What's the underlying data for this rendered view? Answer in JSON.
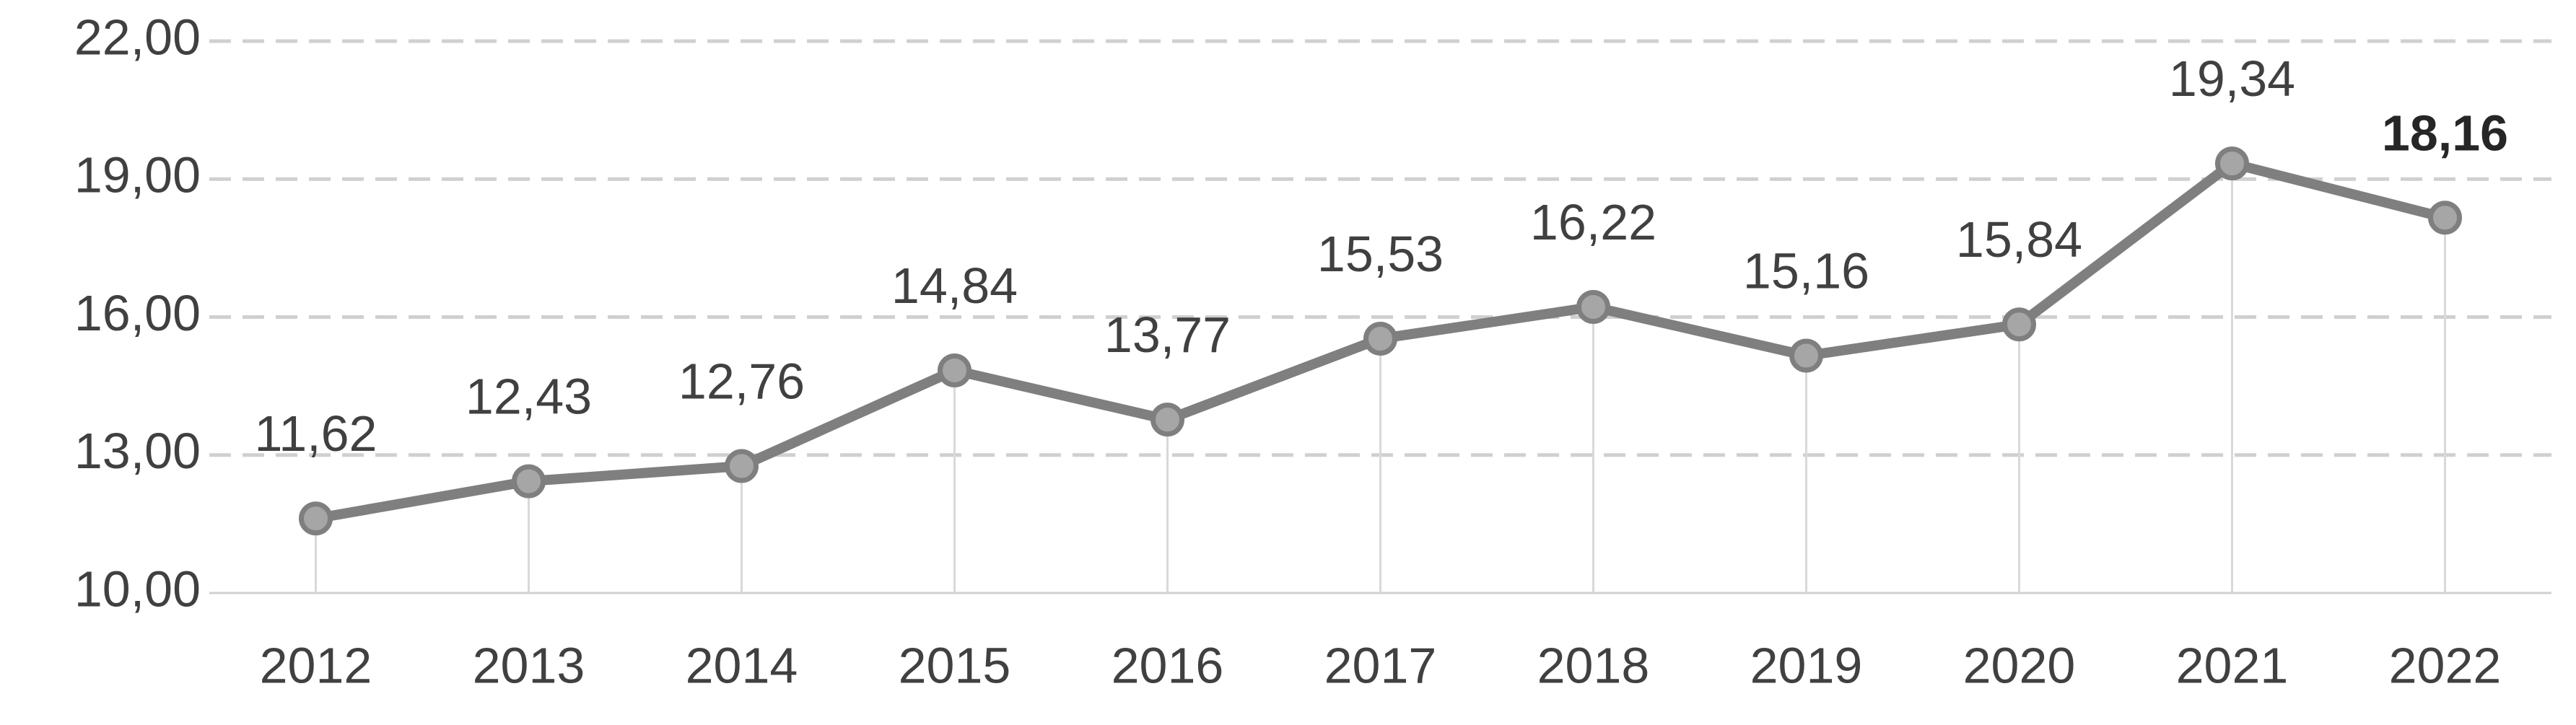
{
  "chart_data": {
    "type": "line",
    "categories": [
      "2012",
      "2013",
      "2014",
      "2015",
      "2016",
      "2017",
      "2018",
      "2019",
      "2020",
      "2021",
      "2022"
    ],
    "values": [
      11.62,
      12.43,
      12.76,
      14.84,
      13.77,
      15.53,
      16.22,
      15.16,
      15.84,
      19.34,
      18.16
    ],
    "value_labels": [
      "11,62",
      "12,43",
      "12,76",
      "14,84",
      "13,77",
      "15,53",
      "16,22",
      "15,16",
      "15,84",
      "19,34",
      "18,16"
    ],
    "emphasized_index": 10,
    "color": "#7f7f7f",
    "marker_fill": "#a6a6a6",
    "ylim": [
      10,
      22
    ],
    "yticks": [
      {
        "value": 10,
        "label": "10,00"
      },
      {
        "value": 13,
        "label": "13,00"
      },
      {
        "value": 16,
        "label": "16,00"
      },
      {
        "value": 19,
        "label": "19,00"
      },
      {
        "value": 22,
        "label": "22,00"
      }
    ],
    "grid": true,
    "drop_lines": true
  }
}
